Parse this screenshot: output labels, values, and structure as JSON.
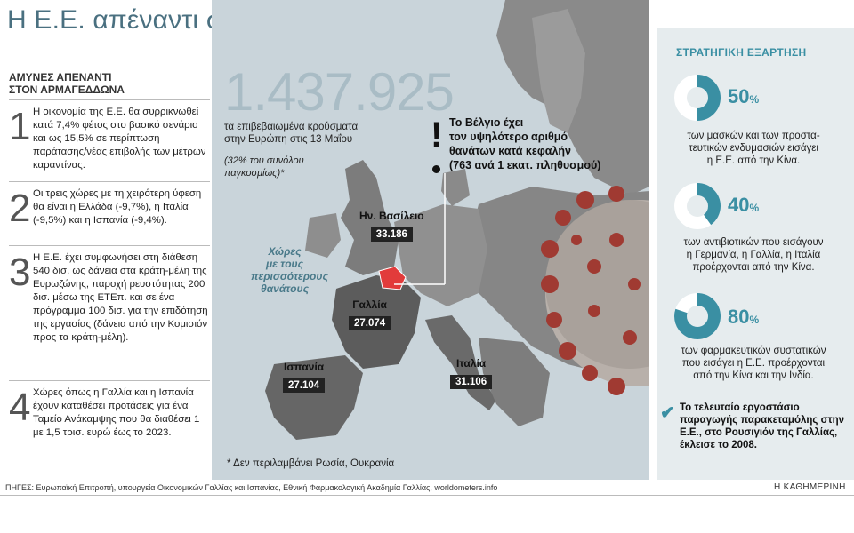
{
  "title": "Η Ε.Ε. απέναντι στον κορωνοϊό",
  "left": {
    "subhead_line1": "ΑΜΥΝΕΣ ΑΠΕΝΑΝΤΙ",
    "subhead_line2": "ΣΤΟΝ ΑΡΜΑΓΕΔΔΩΝΑ",
    "items": [
      {
        "num": "1",
        "text": "Η οικονομία της Ε.Ε. θα συρρικνωθεί κατά 7,4% φέτος στο βασικό σενάριο και ως 15,5% σε περίπτωση παράτασης/νέας επιβολής των μέτρων καραντίνας."
      },
      {
        "num": "2",
        "text": "Οι τρεις χώρες με τη χειρότερη ύφεση θα είναι η Ελλάδα (-9,7%), η Ιταλία (-9,5%) και η Ισπανία (-9,4%)."
      },
      {
        "num": "3",
        "text": "Η Ε.Ε. έχει συμφωνήσει στη διάθεση 540 δισ. ως δάνεια στα κράτη-μέλη της Ευρωζώνης, παροχή ρευστότητας 200 δισ. μέσω της ΕΤΕπ. και σε ένα πρόγραμμα 100 δισ. για την επιδότηση της εργασίας (δάνεια από την Κομισιόν προς τα κράτη-μέλη)."
      },
      {
        "num": "4",
        "text": "Χώρες όπως η Γαλλία και η Ισπανία έχουν καταθέσει προτάσεις για ένα Ταμείο Ανάκαμψης που θα διαθέσει 1 με 1,5 τρισ. ευρώ έως το 2023."
      }
    ]
  },
  "center": {
    "big_number": "1.437.925",
    "big_sub_line1": "τα επιβεβαιωμένα κρούσματα",
    "big_sub_line2": "στην Ευρώπη στις 13 Μαΐου",
    "note_line1": "(32% του συνόλου",
    "note_line2": "παγκοσμίως)*",
    "belgium_lines": [
      "Το Βέλγιο έχει",
      "τον υψηλότερο αριθμό",
      "θανάτων κατά κεφαλήν",
      "(763 ανά 1 εκατ. πληθυσμού)"
    ],
    "deaths_label_lines": [
      "Χώρες",
      "με τους",
      "περισσότερους",
      "θανάτους"
    ],
    "countries": [
      {
        "name": "Ην. Βασίλειο",
        "deaths": "33.186"
      },
      {
        "name": "Γαλλία",
        "deaths": "27.074"
      },
      {
        "name": "Ισπανία",
        "deaths": "27.104"
      },
      {
        "name": "Ιταλία",
        "deaths": "31.106"
      }
    ],
    "footnote": "* Δεν περιλαμβάνει Ρωσία, Ουκρανία"
  },
  "right": {
    "title": "ΣΤΡΑΤΗΓΙΚΗ ΕΞΑΡΤΗΣΗ",
    "stats": [
      {
        "value": 50,
        "pct_num": "50",
        "pct_sign": "%",
        "lines": [
          "των μασκών και των προστα-",
          "τευτικών ενδυμασιών εισάγει",
          "η Ε.Ε. από την Κίνα."
        ]
      },
      {
        "value": 40,
        "pct_num": "40",
        "pct_sign": "%",
        "lines": [
          "των αντιβιοτικών που εισάγουν",
          "η Γερμανία, η Γαλλία, η Ιταλία",
          "προέρχονται από την Κίνα."
        ]
      },
      {
        "value": 80,
        "pct_num": "80",
        "pct_sign": "%",
        "lines": [
          "των φαρμακευτικών συστατικών",
          "που εισάγει η Ε.Ε. προέρχονται",
          "από την Κίνα και την Ινδία."
        ]
      }
    ],
    "final_text": "Το τελευταίο εργοστάσιο παραγωγής παρακεταμόλης στην Ε.Ε., στο Ρουσιγιόν της Γαλλίας, έκλεισε το 2008."
  },
  "sources": "ΠΗΓΕΣ: Ευρωπαϊκή Επιτροπή, υπουργεία Οικονομικών Γαλλίας και Ισπανίας, Εθνική Φαρμακολογική Ακαδημία Γαλλίας, worldometers.info",
  "brand": "Η ΚΑΘΗΜΕΡΙΝΗ",
  "colors": {
    "accent": "#3a8fa3",
    "land": "#7a7a7a",
    "sea": "#c9d4da",
    "virus": "#a03a32"
  }
}
